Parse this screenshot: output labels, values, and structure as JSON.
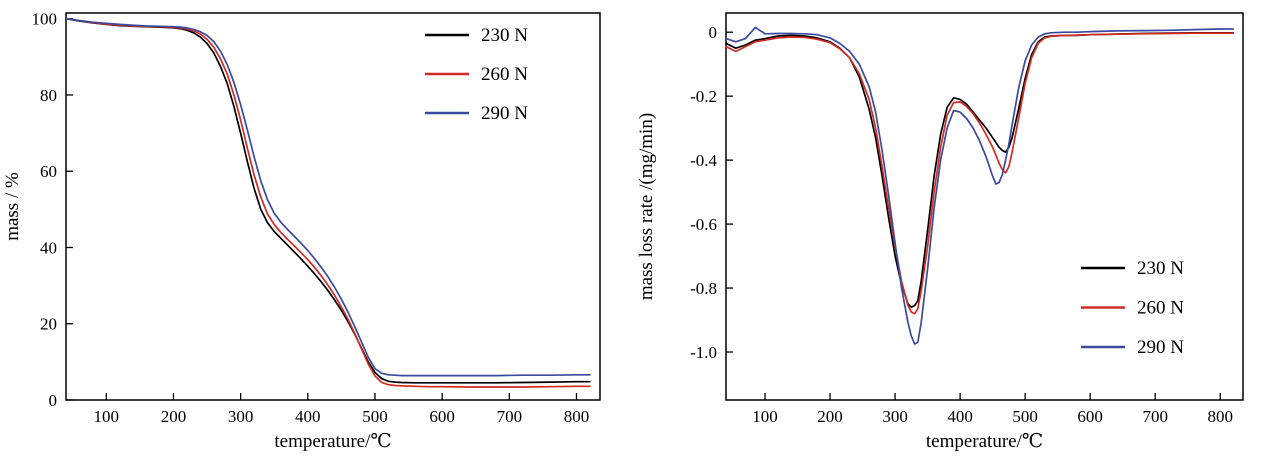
{
  "figure": {
    "background": "#ffffff"
  },
  "chart_data": [
    {
      "id": "tga",
      "type": "line",
      "title": "",
      "xlabel": "temperature/℃",
      "ylabel": "mass / %",
      "xlim": [
        40,
        835
      ],
      "ylim": [
        0,
        101.5
      ],
      "grid": false,
      "legend_position": "top-right",
      "xticks": [
        100,
        200,
        300,
        400,
        500,
        600,
        700,
        800
      ],
      "xtick_labels": [
        "100",
        "200",
        "300",
        "400",
        "500",
        "600",
        "700",
        "800"
      ],
      "yticks": [
        0,
        20,
        40,
        60,
        80,
        100
      ],
      "ytick_labels": [
        "0",
        "20",
        "40",
        "60",
        "80",
        "100"
      ],
      "series": [
        {
          "name": "230 N",
          "color": "#000000",
          "x": [
            40,
            60,
            80,
            100,
            120,
            140,
            160,
            180,
            200,
            210,
            220,
            230,
            240,
            250,
            260,
            270,
            280,
            290,
            300,
            310,
            320,
            330,
            340,
            350,
            360,
            370,
            380,
            390,
            400,
            410,
            420,
            430,
            440,
            450,
            460,
            470,
            480,
            490,
            500,
            510,
            520,
            530,
            540,
            560,
            580,
            600,
            640,
            680,
            720,
            760,
            800,
            820
          ],
          "y": [
            100,
            99.4,
            98.9,
            98.5,
            98.2,
            98.0,
            97.9,
            97.8,
            97.6,
            97.4,
            97.0,
            96.3,
            95.2,
            93.5,
            91.0,
            87.5,
            83.0,
            77.0,
            70.0,
            62.5,
            55.5,
            50.0,
            46.5,
            44.2,
            42.4,
            40.6,
            38.8,
            37.0,
            35.1,
            33.1,
            31.0,
            28.7,
            26.2,
            23.5,
            20.5,
            17.2,
            13.6,
            10.0,
            7.2,
            5.6,
            4.9,
            4.7,
            4.6,
            4.5,
            4.5,
            4.5,
            4.5,
            4.5,
            4.6,
            4.7,
            4.8,
            4.8
          ]
        },
        {
          "name": "260 N",
          "color": "#d42a24",
          "x": [
            40,
            60,
            80,
            100,
            120,
            140,
            160,
            180,
            200,
            210,
            220,
            230,
            240,
            250,
            260,
            270,
            280,
            290,
            300,
            310,
            320,
            330,
            340,
            350,
            360,
            370,
            380,
            390,
            400,
            410,
            420,
            430,
            440,
            450,
            460,
            470,
            480,
            490,
            500,
            510,
            520,
            530,
            540,
            560,
            580,
            600,
            640,
            680,
            720,
            760,
            800,
            820
          ],
          "y": [
            100,
            99.5,
            99.0,
            98.6,
            98.3,
            98.1,
            98.0,
            97.9,
            97.7,
            97.6,
            97.3,
            96.8,
            96.0,
            94.6,
            92.5,
            89.5,
            85.5,
            80.0,
            73.5,
            66.0,
            59.0,
            53.2,
            48.8,
            46.0,
            43.9,
            42.1,
            40.4,
            38.6,
            36.8,
            34.8,
            32.6,
            30.1,
            27.4,
            24.4,
            21.1,
            17.4,
            13.4,
            9.4,
            6.3,
            4.6,
            4.0,
            3.8,
            3.7,
            3.6,
            3.5,
            3.5,
            3.4,
            3.4,
            3.4,
            3.5,
            3.6,
            3.6
          ]
        },
        {
          "name": "290 N",
          "color": "#3b4a9f",
          "x": [
            40,
            60,
            80,
            100,
            120,
            140,
            160,
            180,
            200,
            210,
            220,
            230,
            240,
            250,
            260,
            270,
            280,
            290,
            300,
            310,
            320,
            330,
            340,
            350,
            360,
            370,
            380,
            390,
            400,
            410,
            420,
            430,
            440,
            450,
            460,
            470,
            480,
            490,
            500,
            510,
            520,
            530,
            540,
            560,
            580,
            600,
            640,
            680,
            720,
            760,
            800,
            820
          ],
          "y": [
            100,
            99.5,
            99.1,
            98.8,
            98.5,
            98.3,
            98.1,
            98.0,
            97.9,
            97.8,
            97.6,
            97.2,
            96.6,
            95.6,
            94.0,
            91.5,
            88.0,
            83.3,
            77.5,
            70.8,
            63.8,
            57.5,
            52.5,
            49.0,
            46.6,
            44.7,
            42.9,
            41.1,
            39.2,
            37.1,
            34.8,
            32.3,
            29.5,
            26.4,
            23.0,
            19.2,
            15.2,
            11.2,
            8.2,
            7.0,
            6.6,
            6.5,
            6.4,
            6.4,
            6.4,
            6.4,
            6.4,
            6.4,
            6.5,
            6.5,
            6.6,
            6.6
          ]
        }
      ]
    },
    {
      "id": "dtg",
      "type": "line",
      "title": "",
      "xlabel": "temperature/℃",
      "ylabel": "mass loss rate /(mg/min)",
      "xlim": [
        40,
        835
      ],
      "ylim": [
        -1.15,
        0.06
      ],
      "grid": false,
      "legend_position": "bottom-right",
      "xticks": [
        100,
        200,
        300,
        400,
        500,
        600,
        700,
        800
      ],
      "xtick_labels": [
        "100",
        "200",
        "300",
        "400",
        "500",
        "600",
        "700",
        "800"
      ],
      "yticks": [
        -1.0,
        -0.8,
        -0.6,
        -0.4,
        -0.2,
        0
      ],
      "ytick_labels": [
        "-1.0",
        "-0.8",
        "-0.6",
        "-0.4",
        "-0.2",
        "0"
      ],
      "series": [
        {
          "name": "230 N",
          "color": "#000000",
          "x": [
            40,
            55,
            70,
            85,
            100,
            120,
            140,
            160,
            180,
            200,
            215,
            230,
            245,
            260,
            270,
            280,
            290,
            300,
            310,
            320,
            325,
            330,
            335,
            340,
            350,
            360,
            370,
            380,
            390,
            400,
            410,
            420,
            430,
            440,
            450,
            455,
            460,
            465,
            470,
            475,
            480,
            490,
            500,
            510,
            520,
            530,
            540,
            560,
            580,
            600,
            640,
            680,
            720,
            760,
            800,
            820
          ],
          "y": [
            -0.035,
            -0.05,
            -0.04,
            -0.025,
            -0.02,
            -0.012,
            -0.01,
            -0.012,
            -0.018,
            -0.03,
            -0.05,
            -0.08,
            -0.14,
            -0.24,
            -0.33,
            -0.45,
            -0.58,
            -0.7,
            -0.79,
            -0.85,
            -0.86,
            -0.855,
            -0.84,
            -0.78,
            -0.62,
            -0.45,
            -0.32,
            -0.235,
            -0.205,
            -0.21,
            -0.225,
            -0.25,
            -0.275,
            -0.3,
            -0.33,
            -0.345,
            -0.36,
            -0.37,
            -0.375,
            -0.36,
            -0.33,
            -0.24,
            -0.145,
            -0.07,
            -0.03,
            -0.015,
            -0.012,
            -0.01,
            -0.01,
            -0.008,
            -0.006,
            -0.004,
            -0.003,
            -0.002,
            -0.002,
            -0.002
          ]
        },
        {
          "name": "260 N",
          "color": "#d42a24",
          "x": [
            40,
            55,
            70,
            85,
            100,
            120,
            140,
            160,
            180,
            200,
            215,
            230,
            245,
            260,
            270,
            280,
            290,
            300,
            310,
            320,
            325,
            330,
            335,
            340,
            350,
            360,
            370,
            380,
            390,
            400,
            410,
            420,
            430,
            440,
            450,
            455,
            460,
            465,
            470,
            475,
            480,
            490,
            500,
            510,
            520,
            530,
            540,
            560,
            580,
            600,
            640,
            680,
            720,
            760,
            800,
            820
          ],
          "y": [
            -0.045,
            -0.06,
            -0.045,
            -0.03,
            -0.025,
            -0.018,
            -0.015,
            -0.016,
            -0.022,
            -0.033,
            -0.052,
            -0.08,
            -0.13,
            -0.21,
            -0.3,
            -0.42,
            -0.55,
            -0.67,
            -0.78,
            -0.855,
            -0.875,
            -0.88,
            -0.865,
            -0.81,
            -0.67,
            -0.5,
            -0.36,
            -0.26,
            -0.22,
            -0.218,
            -0.232,
            -0.255,
            -0.285,
            -0.32,
            -0.36,
            -0.385,
            -0.41,
            -0.43,
            -0.44,
            -0.42,
            -0.375,
            -0.27,
            -0.16,
            -0.08,
            -0.035,
            -0.018,
            -0.013,
            -0.01,
            -0.009,
            -0.008,
            -0.006,
            -0.005,
            -0.004,
            -0.003,
            -0.003,
            -0.003
          ]
        },
        {
          "name": "290 N",
          "color": "#3b4a9f",
          "x": [
            40,
            55,
            70,
            85,
            100,
            120,
            140,
            160,
            180,
            200,
            215,
            230,
            245,
            260,
            270,
            280,
            290,
            300,
            310,
            320,
            325,
            330,
            335,
            340,
            350,
            360,
            370,
            380,
            390,
            400,
            410,
            420,
            430,
            440,
            450,
            455,
            460,
            465,
            470,
            475,
            480,
            490,
            500,
            510,
            520,
            530,
            540,
            560,
            580,
            600,
            640,
            680,
            720,
            760,
            800,
            820
          ],
          "y": [
            -0.02,
            -0.03,
            -0.02,
            0.015,
            -0.005,
            -0.004,
            -0.004,
            -0.005,
            -0.008,
            -0.018,
            -0.035,
            -0.06,
            -0.1,
            -0.17,
            -0.25,
            -0.37,
            -0.51,
            -0.66,
            -0.8,
            -0.91,
            -0.95,
            -0.975,
            -0.97,
            -0.91,
            -0.74,
            -0.55,
            -0.4,
            -0.3,
            -0.245,
            -0.25,
            -0.27,
            -0.3,
            -0.34,
            -0.39,
            -0.45,
            -0.475,
            -0.47,
            -0.445,
            -0.4,
            -0.35,
            -0.29,
            -0.175,
            -0.09,
            -0.04,
            -0.015,
            -0.005,
            -0.002,
            0,
            0,
            0.002,
            0.004,
            0.005,
            0.006,
            0.008,
            0.01,
            0.01
          ]
        }
      ]
    }
  ]
}
